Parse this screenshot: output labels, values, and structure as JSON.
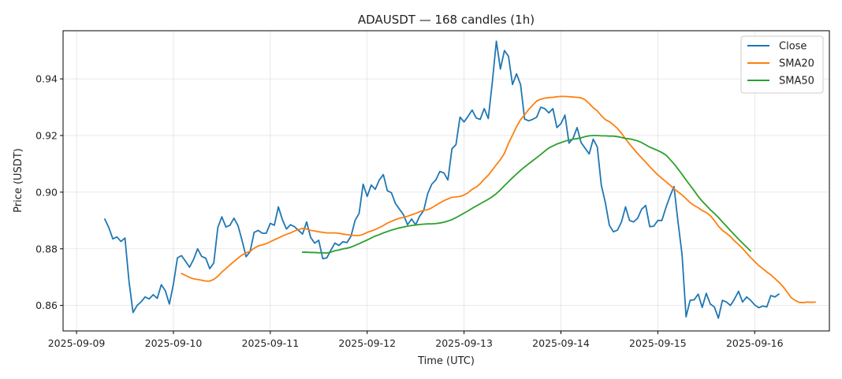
{
  "chart_data": {
    "type": "line",
    "title": "ADAUSDT — 168 candles (1h)",
    "xlabel": "Time (UTC)",
    "ylabel": "Price (USDT)",
    "x_start": "2025-09-09T07:00:00Z",
    "x_step_hours": 1,
    "x_ticks": [
      "2025-09-09",
      "2025-09-10",
      "2025-09-11",
      "2025-09-12",
      "2025-09-13",
      "2025-09-14",
      "2025-09-15",
      "2025-09-16"
    ],
    "x_range": [
      "2025-09-08T20:40:00Z",
      "2025-09-16T18:30:00Z"
    ],
    "y_ticks": [
      0.86,
      0.88,
      0.9,
      0.92,
      0.94
    ],
    "ylim": [
      0.851,
      0.957
    ],
    "grid": true,
    "legend_position": "top-right",
    "series": [
      {
        "name": "Close",
        "color": "#1f77b4",
        "values": [
          0.8905,
          0.8875,
          0.8835,
          0.8842,
          0.8826,
          0.8838,
          0.8685,
          0.8575,
          0.86,
          0.8613,
          0.863,
          0.8623,
          0.8638,
          0.8625,
          0.8673,
          0.8652,
          0.8605,
          0.8675,
          0.8768,
          0.8776,
          0.8756,
          0.8735,
          0.8763,
          0.88,
          0.8773,
          0.8767,
          0.873,
          0.875,
          0.8875,
          0.8913,
          0.8877,
          0.8883,
          0.8908,
          0.8882,
          0.883,
          0.8772,
          0.879,
          0.8858,
          0.8865,
          0.8855,
          0.8855,
          0.889,
          0.8883,
          0.8948,
          0.8903,
          0.887,
          0.8885,
          0.8878,
          0.8865,
          0.8852,
          0.8895,
          0.884,
          0.882,
          0.883,
          0.8765,
          0.8768,
          0.8795,
          0.882,
          0.8812,
          0.8825,
          0.8822,
          0.8845,
          0.89,
          0.8925,
          0.9028,
          0.8985,
          0.9025,
          0.901,
          0.9043,
          0.9062,
          0.9005,
          0.8998,
          0.896,
          0.894,
          0.892,
          0.8885,
          0.8905,
          0.8885,
          0.8915,
          0.8935,
          0.8995,
          0.9028,
          0.9043,
          0.9073,
          0.9068,
          0.9043,
          0.9153,
          0.9168,
          0.9265,
          0.9248,
          0.9268,
          0.929,
          0.9262,
          0.9257,
          0.9295,
          0.926,
          0.9388,
          0.9533,
          0.9435,
          0.95,
          0.948,
          0.938,
          0.9418,
          0.938,
          0.9258,
          0.9252,
          0.9257,
          0.9265,
          0.93,
          0.9295,
          0.928,
          0.9295,
          0.9228,
          0.9242,
          0.9272,
          0.9173,
          0.919,
          0.9228,
          0.9175,
          0.9155,
          0.9135,
          0.9187,
          0.916,
          0.9025,
          0.8963,
          0.8883,
          0.886,
          0.8866,
          0.8895,
          0.8948,
          0.89,
          0.8895,
          0.8908,
          0.894,
          0.8953,
          0.8878,
          0.888,
          0.89,
          0.89,
          0.8945,
          0.8985,
          0.902,
          0.8895,
          0.878,
          0.856,
          0.8618,
          0.862,
          0.864,
          0.8593,
          0.8643,
          0.8605,
          0.8595,
          0.8555,
          0.8618,
          0.8612,
          0.86,
          0.8623,
          0.865,
          0.8612,
          0.863,
          0.8618,
          0.8602,
          0.8592,
          0.8598,
          0.8595,
          0.8635,
          0.863,
          0.864
        ]
      },
      {
        "name": "SMA20",
        "color": "#ff7f0e",
        "values": [
          null,
          null,
          null,
          null,
          null,
          null,
          null,
          null,
          null,
          null,
          null,
          null,
          null,
          null,
          null,
          null,
          null,
          null,
          null,
          0.8713,
          0.8706,
          0.8699,
          0.8694,
          0.8692,
          0.8689,
          0.8686,
          0.8686,
          0.8692,
          0.8703,
          0.8718,
          0.873,
          0.8743,
          0.8755,
          0.8767,
          0.8778,
          0.8786,
          0.8791,
          0.8802,
          0.881,
          0.8814,
          0.8818,
          0.8825,
          0.8832,
          0.8838,
          0.8845,
          0.8851,
          0.8856,
          0.8863,
          0.8868,
          0.8872,
          0.887,
          0.8865,
          0.8863,
          0.886,
          0.8858,
          0.8856,
          0.8856,
          0.8856,
          0.8855,
          0.8852,
          0.885,
          0.8848,
          0.8847,
          0.8847,
          0.8851,
          0.8858,
          0.8863,
          0.8868,
          0.8875,
          0.8882,
          0.8891,
          0.8897,
          0.8903,
          0.8908,
          0.8911,
          0.8915,
          0.892,
          0.8925,
          0.8931,
          0.8936,
          0.8938,
          0.8945,
          0.8953,
          0.8962,
          0.897,
          0.8976,
          0.8982,
          0.8983,
          0.8985,
          0.899,
          0.8998,
          0.901,
          0.9018,
          0.903,
          0.9046,
          0.906,
          0.9078,
          0.9097,
          0.9115,
          0.9137,
          0.9172,
          0.9201,
          0.9231,
          0.9256,
          0.9273,
          0.9292,
          0.9307,
          0.9322,
          0.9328,
          0.9332,
          0.9334,
          0.9335,
          0.9337,
          0.9338,
          0.9338,
          0.9337,
          0.9336,
          0.9335,
          0.9333,
          0.9326,
          0.9313,
          0.9298,
          0.9287,
          0.927,
          0.9256,
          0.9249,
          0.9238,
          0.9225,
          0.9208,
          0.9188,
          0.917,
          0.9153,
          0.9136,
          0.9121,
          0.9106,
          0.909,
          0.9075,
          0.9061,
          0.9049,
          0.9037,
          0.9025,
          0.9012,
          0.9001,
          0.899,
          0.8977,
          0.8963,
          0.8953,
          0.8945,
          0.8935,
          0.8928,
          0.8917,
          0.89,
          0.888,
          0.8865,
          0.8855,
          0.8843,
          0.8828,
          0.8815,
          0.8801,
          0.8785,
          0.8769,
          0.8755,
          0.8741,
          0.873,
          0.8718,
          0.8708,
          0.8695,
          0.8682,
          0.8667,
          0.8648,
          0.8628,
          0.8618,
          0.8611,
          0.861,
          0.8612,
          0.8611,
          0.8612
        ]
      },
      {
        "name": "SMA50",
        "color": "#2ca02c",
        "values": [
          null,
          null,
          null,
          null,
          null,
          null,
          null,
          null,
          null,
          null,
          null,
          null,
          null,
          null,
          null,
          null,
          null,
          null,
          null,
          null,
          null,
          null,
          null,
          null,
          null,
          null,
          null,
          null,
          null,
          null,
          null,
          null,
          null,
          null,
          null,
          null,
          null,
          null,
          null,
          null,
          null,
          null,
          null,
          null,
          null,
          null,
          null,
          null,
          null,
          0.8788,
          0.8788,
          0.8787,
          0.8787,
          0.8786,
          0.8786,
          0.8785,
          0.8788,
          0.8793,
          0.8796,
          0.88,
          0.8802,
          0.8806,
          0.8812,
          0.8818,
          0.8825,
          0.8831,
          0.8838,
          0.8845,
          0.885,
          0.8856,
          0.8861,
          0.8866,
          0.887,
          0.8874,
          0.8877,
          0.888,
          0.8882,
          0.8884,
          0.8886,
          0.8887,
          0.8888,
          0.8888,
          0.8889,
          0.8891,
          0.8894,
          0.8898,
          0.8903,
          0.891,
          0.8918,
          0.8926,
          0.8934,
          0.8943,
          0.8951,
          0.8959,
          0.8967,
          0.8975,
          0.8984,
          0.8995,
          0.9008,
          0.9023,
          0.9037,
          0.9051,
          0.9064,
          0.9077,
          0.9089,
          0.91,
          0.9111,
          0.9122,
          0.9133,
          0.9145,
          0.9156,
          0.9163,
          0.917,
          0.9175,
          0.918,
          0.9184,
          0.9187,
          0.9189,
          0.9192,
          0.9196,
          0.9199,
          0.92,
          0.92,
          0.9199,
          0.9199,
          0.9198,
          0.9198,
          0.9196,
          0.9193,
          0.919,
          0.9188,
          0.9185,
          0.9181,
          0.9175,
          0.9167,
          0.9159,
          0.9153,
          0.9147,
          0.914,
          0.9131,
          0.9116,
          0.91,
          0.9082,
          0.9063,
          0.9043,
          0.9024,
          0.9005,
          0.8985,
          0.8968,
          0.8953,
          0.8938,
          0.8925,
          0.8911,
          0.8895,
          0.888,
          0.8864,
          0.8849,
          0.8834,
          0.882,
          0.8806,
          0.8792
        ]
      }
    ]
  }
}
